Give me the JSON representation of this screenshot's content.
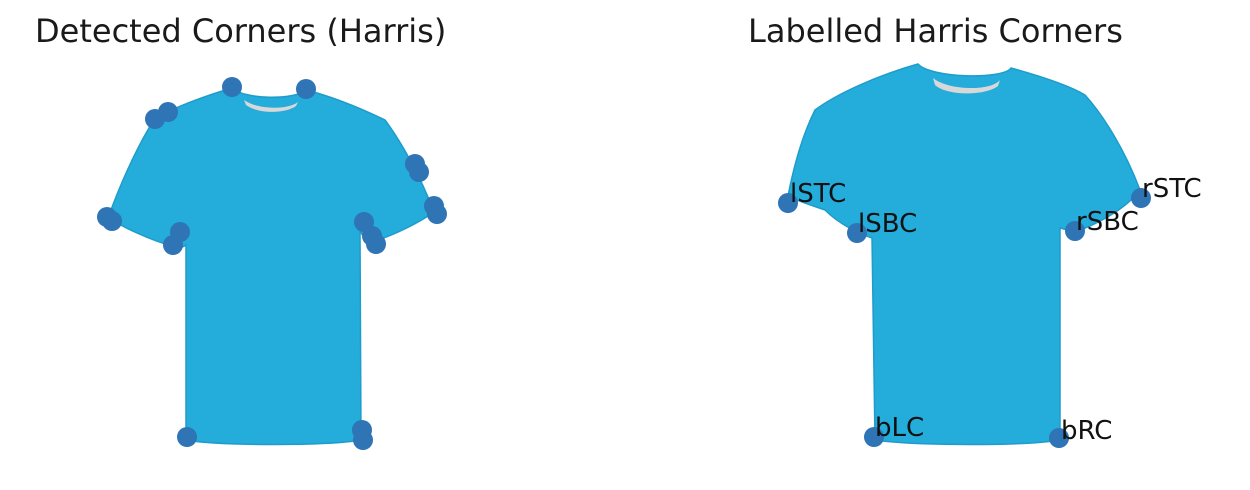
{
  "panels": [
    {
      "title": "Detected Corners (Harris)"
    },
    {
      "title": "Labelled Harris Corners"
    }
  ],
  "labels": {
    "lSTC": "lSTC",
    "lSBC": "lSBC",
    "rSTC": "rSTC",
    "rSBC": "rSBC",
    "bLC": "bLC",
    "bRC": "bRC"
  },
  "colors": {
    "shirt": "#24acdb",
    "shirt_shadow": "#1e9ccb",
    "collar": "#d8d8d8",
    "marker": "#2f74b5"
  }
}
